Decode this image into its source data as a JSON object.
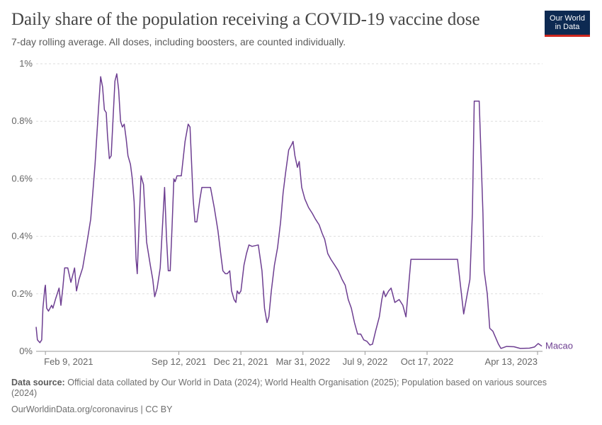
{
  "header": {
    "title": "Daily share of the population receiving a COVID-19 vaccine dose",
    "subtitle": "7-day rolling average. All doses, including boosters, are counted individually."
  },
  "logo": {
    "line1": "Our World",
    "line2": "in Data"
  },
  "footer": {
    "source_label": "Data source:",
    "source_text": "Official data collated by Our World in Data (2024); World Health Organisation (2025); Population based on various sources (2024)",
    "credit": "OurWorldinData.org/coronavirus | CC BY"
  },
  "colors": {
    "series": "#6d3e91",
    "grid": "#dddddd",
    "axis": "#999999",
    "text": "#666666"
  },
  "chart_data": {
    "type": "line",
    "title": "Daily share of the population receiving a COVID-19 vaccine dose",
    "subtitle": "7-day rolling average. All doses, including boosters, are counted individually.",
    "ylabel": "",
    "ylim": [
      0,
      1
    ],
    "yticks": [
      {
        "value": 0,
        "label": "0%"
      },
      {
        "value": 0.2,
        "label": "0.2%"
      },
      {
        "value": 0.4,
        "label": "0.4%"
      },
      {
        "value": 0.6,
        "label": "0.6%"
      },
      {
        "value": 0.8,
        "label": "0.8%"
      },
      {
        "value": 1,
        "label": "1%"
      }
    ],
    "xlim": [
      "2021-01-25",
      "2023-04-21"
    ],
    "xticks": [
      {
        "date": "2021-02-09",
        "label": "Feb 9, 2021",
        "anchor": "start"
      },
      {
        "date": "2021-09-12",
        "label": "Sep 12, 2021",
        "anchor": "middle"
      },
      {
        "date": "2021-12-21",
        "label": "Dec 21, 2021",
        "anchor": "middle"
      },
      {
        "date": "2022-03-31",
        "label": "Mar 31, 2022",
        "anchor": "middle"
      },
      {
        "date": "2022-07-09",
        "label": "Jul 9, 2022",
        "anchor": "middle"
      },
      {
        "date": "2022-10-17",
        "label": "Oct 17, 2022",
        "anchor": "middle"
      },
      {
        "date": "2023-04-13",
        "label": "Apr 13, 2023",
        "anchor": "end"
      }
    ],
    "grid": true,
    "legend": "end-of-line",
    "series": [
      {
        "name": "Macao",
        "color": "#6d3e91",
        "points": [
          [
            "2021-01-25",
            0.085
          ],
          [
            "2021-01-27",
            0.04
          ],
          [
            "2021-01-31",
            0.03
          ],
          [
            "2021-02-03",
            0.04
          ],
          [
            "2021-02-05",
            0.15
          ],
          [
            "2021-02-08",
            0.22
          ],
          [
            "2021-02-09",
            0.23
          ],
          [
            "2021-02-11",
            0.15
          ],
          [
            "2021-02-14",
            0.14
          ],
          [
            "2021-02-19",
            0.16
          ],
          [
            "2021-02-21",
            0.15
          ],
          [
            "2021-02-25",
            0.18
          ],
          [
            "2021-03-03",
            0.22
          ],
          [
            "2021-03-06",
            0.16
          ],
          [
            "2021-03-09",
            0.22
          ],
          [
            "2021-03-12",
            0.29
          ],
          [
            "2021-03-17",
            0.29
          ],
          [
            "2021-03-22",
            0.24
          ],
          [
            "2021-03-28",
            0.29
          ],
          [
            "2021-03-31",
            0.21
          ],
          [
            "2021-04-04",
            0.25
          ],
          [
            "2021-04-10",
            0.29
          ],
          [
            "2021-04-17",
            0.38
          ],
          [
            "2021-04-23",
            0.46
          ],
          [
            "2021-04-30",
            0.65
          ],
          [
            "2021-05-06",
            0.86
          ],
          [
            "2021-05-09",
            0.955
          ],
          [
            "2021-05-12",
            0.92
          ],
          [
            "2021-05-15",
            0.84
          ],
          [
            "2021-05-18",
            0.83
          ],
          [
            "2021-05-20",
            0.75
          ],
          [
            "2021-05-23",
            0.67
          ],
          [
            "2021-05-26",
            0.68
          ],
          [
            "2021-06-01",
            0.94
          ],
          [
            "2021-06-04",
            0.965
          ],
          [
            "2021-06-07",
            0.91
          ],
          [
            "2021-06-10",
            0.8
          ],
          [
            "2021-06-13",
            0.78
          ],
          [
            "2021-06-16",
            0.79
          ],
          [
            "2021-06-19",
            0.74
          ],
          [
            "2021-06-22",
            0.68
          ],
          [
            "2021-06-26",
            0.65
          ],
          [
            "2021-06-29",
            0.6
          ],
          [
            "2021-07-02",
            0.52
          ],
          [
            "2021-07-05",
            0.32
          ],
          [
            "2021-07-07",
            0.27
          ],
          [
            "2021-07-10",
            0.45
          ],
          [
            "2021-07-13",
            0.61
          ],
          [
            "2021-07-17",
            0.58
          ],
          [
            "2021-07-22",
            0.38
          ],
          [
            "2021-07-28",
            0.3
          ],
          [
            "2021-08-01",
            0.25
          ],
          [
            "2021-08-04",
            0.19
          ],
          [
            "2021-08-08",
            0.22
          ],
          [
            "2021-08-13",
            0.29
          ],
          [
            "2021-08-20",
            0.57
          ],
          [
            "2021-08-23",
            0.4
          ],
          [
            "2021-08-26",
            0.28
          ],
          [
            "2021-08-29",
            0.28
          ],
          [
            "2021-09-01",
            0.43
          ],
          [
            "2021-09-04",
            0.6
          ],
          [
            "2021-09-06",
            0.59
          ],
          [
            "2021-09-09",
            0.61
          ],
          [
            "2021-09-16",
            0.61
          ],
          [
            "2021-09-22",
            0.73
          ],
          [
            "2021-09-27",
            0.79
          ],
          [
            "2021-09-30",
            0.78
          ],
          [
            "2021-10-05",
            0.53
          ],
          [
            "2021-10-08",
            0.45
          ],
          [
            "2021-10-11",
            0.45
          ],
          [
            "2021-10-16",
            0.53
          ],
          [
            "2021-10-19",
            0.57
          ],
          [
            "2021-11-02",
            0.57
          ],
          [
            "2021-11-08",
            0.5
          ],
          [
            "2021-11-14",
            0.42
          ],
          [
            "2021-11-19",
            0.33
          ],
          [
            "2021-11-22",
            0.28
          ],
          [
            "2021-11-26",
            0.27
          ],
          [
            "2021-11-29",
            0.27
          ],
          [
            "2021-12-03",
            0.28
          ],
          [
            "2021-12-06",
            0.21
          ],
          [
            "2021-12-10",
            0.18
          ],
          [
            "2021-12-13",
            0.17
          ],
          [
            "2021-12-15",
            0.21
          ],
          [
            "2021-12-18",
            0.2
          ],
          [
            "2021-12-21",
            0.21
          ],
          [
            "2021-12-26",
            0.3
          ],
          [
            "2021-12-30",
            0.34
          ],
          [
            "2022-01-03",
            0.37
          ],
          [
            "2022-01-08",
            0.365
          ],
          [
            "2022-01-18",
            0.37
          ],
          [
            "2022-01-24",
            0.28
          ],
          [
            "2022-01-28",
            0.15
          ],
          [
            "2022-02-01",
            0.1
          ],
          [
            "2022-02-04",
            0.12
          ],
          [
            "2022-02-08",
            0.21
          ],
          [
            "2022-02-13",
            0.3
          ],
          [
            "2022-02-18",
            0.36
          ],
          [
            "2022-02-23",
            0.45
          ],
          [
            "2022-02-27",
            0.55
          ],
          [
            "2022-03-03",
            0.62
          ],
          [
            "2022-03-08",
            0.7
          ],
          [
            "2022-03-13",
            0.72
          ],
          [
            "2022-03-15",
            0.73
          ],
          [
            "2022-03-18",
            0.68
          ],
          [
            "2022-03-22",
            0.64
          ],
          [
            "2022-03-25",
            0.66
          ],
          [
            "2022-03-29",
            0.57
          ],
          [
            "2022-04-03",
            0.53
          ],
          [
            "2022-04-09",
            0.5
          ],
          [
            "2022-04-15",
            0.48
          ],
          [
            "2022-04-20",
            0.46
          ],
          [
            "2022-04-26",
            0.44
          ],
          [
            "2022-05-01",
            0.41
          ],
          [
            "2022-05-05",
            0.39
          ],
          [
            "2022-05-10",
            0.34
          ],
          [
            "2022-05-15",
            0.32
          ],
          [
            "2022-05-21",
            0.3
          ],
          [
            "2022-05-27",
            0.28
          ],
          [
            "2022-06-02",
            0.25
          ],
          [
            "2022-06-07",
            0.23
          ],
          [
            "2022-06-12",
            0.18
          ],
          [
            "2022-06-17",
            0.15
          ],
          [
            "2022-06-22",
            0.1
          ],
          [
            "2022-06-27",
            0.06
          ],
          [
            "2022-07-02",
            0.06
          ],
          [
            "2022-07-07",
            0.04
          ],
          [
            "2022-07-12",
            0.035
          ],
          [
            "2022-07-17",
            0.022
          ],
          [
            "2022-07-21",
            0.025
          ],
          [
            "2022-07-26",
            0.07
          ],
          [
            "2022-08-01",
            0.12
          ],
          [
            "2022-08-05",
            0.18
          ],
          [
            "2022-08-08",
            0.21
          ],
          [
            "2022-08-11",
            0.19
          ],
          [
            "2022-08-16",
            0.21
          ],
          [
            "2022-08-20",
            0.22
          ],
          [
            "2022-08-26",
            0.17
          ],
          [
            "2022-09-02",
            0.18
          ],
          [
            "2022-09-08",
            0.16
          ],
          [
            "2022-09-13",
            0.12
          ],
          [
            "2022-09-21",
            0.32
          ],
          [
            "2022-12-05",
            0.32
          ],
          [
            "2022-12-15",
            0.13
          ],
          [
            "2022-12-25",
            0.25
          ],
          [
            "2022-12-29",
            0.48
          ],
          [
            "2023-01-01",
            0.87
          ],
          [
            "2023-01-09",
            0.87
          ],
          [
            "2023-01-15",
            0.48
          ],
          [
            "2023-01-17",
            0.28
          ],
          [
            "2023-01-22",
            0.2
          ],
          [
            "2023-01-26",
            0.08
          ],
          [
            "2023-01-31",
            0.07
          ],
          [
            "2023-02-09",
            0.025
          ],
          [
            "2023-02-13",
            0.01
          ],
          [
            "2023-02-22",
            0.017
          ],
          [
            "2023-03-06",
            0.016
          ],
          [
            "2023-03-16",
            0.01
          ],
          [
            "2023-03-31",
            0.011
          ],
          [
            "2023-04-08",
            0.015
          ],
          [
            "2023-04-14",
            0.027
          ],
          [
            "2023-04-20",
            0.018
          ]
        ]
      }
    ]
  }
}
